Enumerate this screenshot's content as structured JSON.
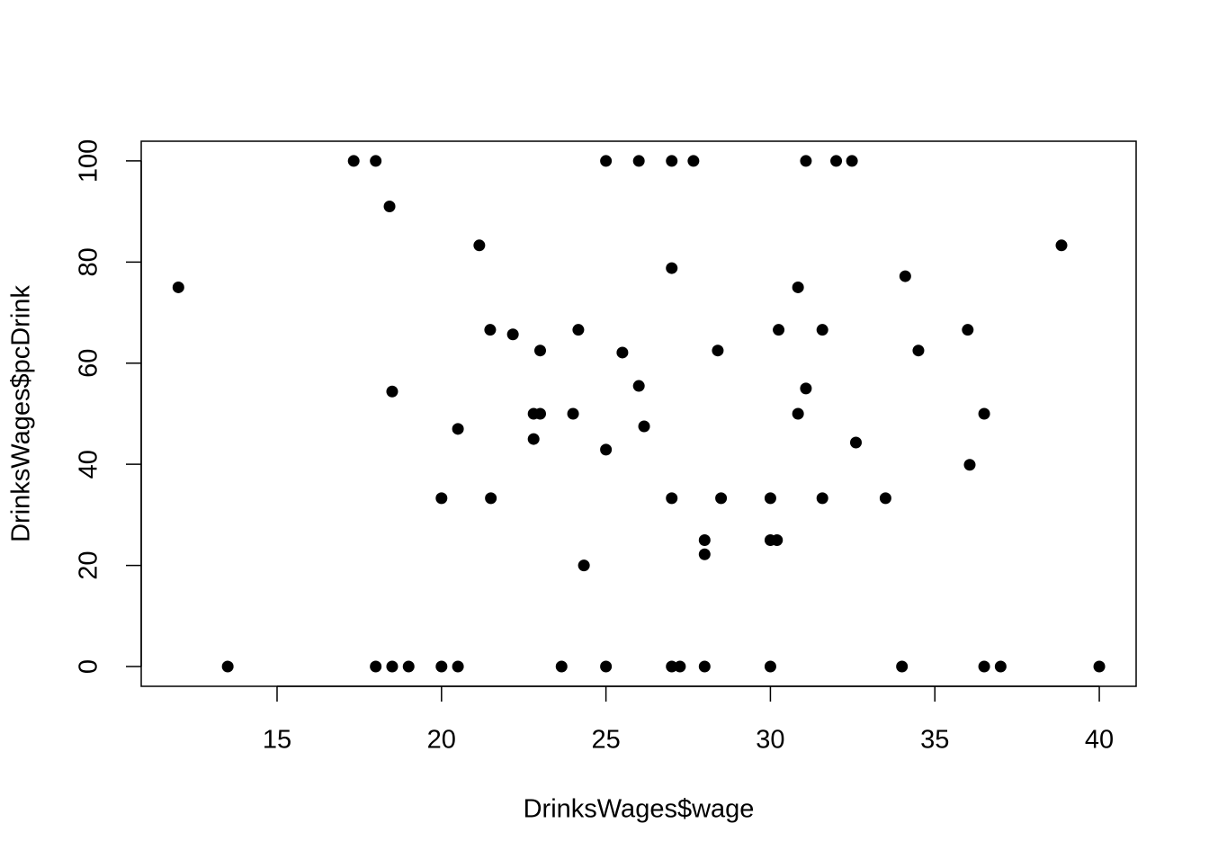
{
  "chart_data": {
    "type": "scatter",
    "x_label": "DrinksWages$wage",
    "y_label": "DrinksWages$pcDrink",
    "color": "#000000",
    "x": [
      12,
      13.5,
      17.33,
      18,
      18.42,
      18,
      18.5,
      18.5,
      19,
      20,
      20,
      20.5,
      20.5,
      21.15,
      21.48,
      21.5,
      22.17,
      22.8,
      22.8,
      23,
      23,
      23.65,
      24,
      24.16,
      24.33,
      25,
      25,
      25,
      25.5,
      26,
      26,
      26.16,
      27,
      27,
      27,
      27,
      27.25,
      27.66,
      28,
      28,
      28,
      28.4,
      28.5,
      30,
      30,
      30,
      30.2,
      30.25,
      30.84,
      30.84,
      31.08,
      31.08,
      31.58,
      31.58,
      32,
      32.48,
      32.6,
      33.5,
      34,
      34.1,
      34.5,
      36,
      36.06,
      36.5,
      36.5,
      37,
      38.85,
      40
    ],
    "y": [
      75,
      0,
      100,
      100,
      91,
      0,
      0,
      54.4,
      0,
      33.3,
      0,
      47,
      0,
      83.3,
      66.6,
      33.3,
      65.7,
      50,
      45,
      50,
      62.5,
      0,
      50,
      66.6,
      20,
      100,
      42.9,
      0,
      62.1,
      100,
      55.5,
      47.5,
      100,
      78.8,
      33.3,
      0,
      0,
      100,
      25,
      22.2,
      0,
      62.5,
      33.3,
      33.3,
      25,
      0,
      25,
      66.6,
      75,
      50,
      100,
      55,
      66.6,
      33.3,
      100,
      100,
      44.3,
      33.3,
      0,
      77.2,
      62.5,
      66.6,
      39.9,
      0,
      50,
      0,
      83.3,
      0
    ],
    "xlim": [
      10.87,
      41.12
    ],
    "ylim": [
      -3.91,
      103.9
    ],
    "xticks": [
      15,
      20,
      25,
      30,
      35,
      40
    ],
    "yticks": [
      0,
      20,
      40,
      60,
      80,
      100
    ]
  }
}
